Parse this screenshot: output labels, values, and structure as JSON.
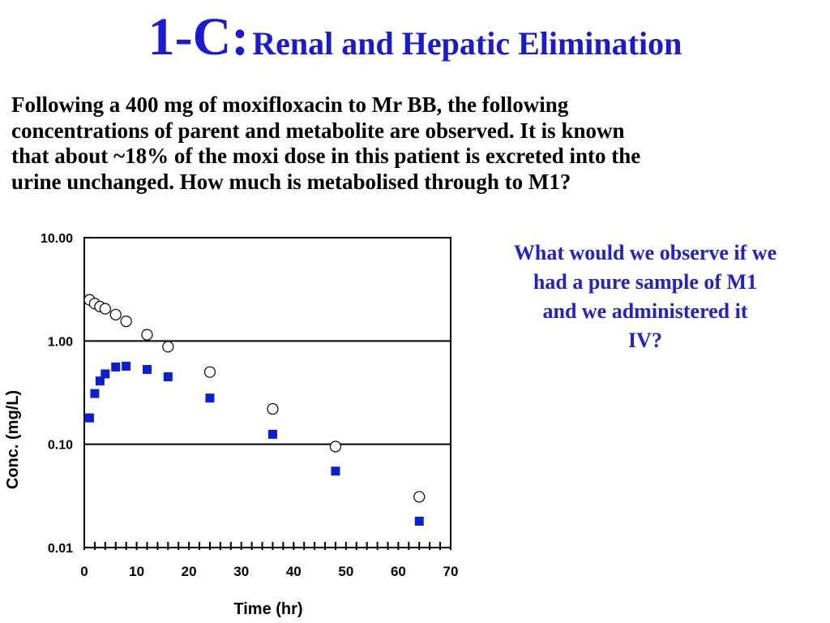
{
  "title": {
    "number": "1-C:",
    "text": "Renal and Hepatic Elimination"
  },
  "problem": {
    "line1": "Following a 400 mg of moxifloxacin to Mr BB, the following",
    "line2": "concentrations of parent and metabolite are observed.  It is known",
    "line3": "that about ~18% of the moxi dose in this patient is excreted into the",
    "line4": "urine unchanged.  How much is metabolised through to M1?"
  },
  "question": {
    "line1": "What would we observe if we",
    "line2": "had a pure sample of M1",
    "line3": "and we administered it",
    "line4": "IV?"
  },
  "colors": {
    "title": "#1a1ad6",
    "question": "#2222cc",
    "metabolite": "#0a1ed8"
  },
  "chart_data": {
    "type": "scatter",
    "xlabel": "Time (hr)",
    "ylabel": "Conc. (mg/L)",
    "xlim": [
      0,
      70
    ],
    "ylim": [
      0.01,
      10
    ],
    "y_scale": "log",
    "x_ticks": [
      "0",
      "10",
      "20",
      "30",
      "40",
      "50",
      "60",
      "70"
    ],
    "y_ticks": [
      "10.00",
      "1.00",
      "0.10",
      "0.01"
    ],
    "grid": "horizontal at decades",
    "series": [
      {
        "marker": "open-circle",
        "x": [
          1,
          2,
          3,
          4,
          6,
          8,
          12,
          16,
          24,
          36,
          48,
          64
        ],
        "y": [
          2.5,
          2.3,
          2.15,
          2.05,
          1.8,
          1.55,
          1.15,
          0.88,
          0.5,
          0.22,
          0.095,
          0.031
        ]
      },
      {
        "marker": "filled-square",
        "x": [
          1,
          2,
          3,
          4,
          6,
          8,
          12,
          16,
          24,
          36,
          48,
          64
        ],
        "y": [
          0.18,
          0.31,
          0.41,
          0.48,
          0.56,
          0.57,
          0.53,
          0.45,
          0.28,
          0.125,
          0.055,
          0.018
        ]
      }
    ]
  }
}
